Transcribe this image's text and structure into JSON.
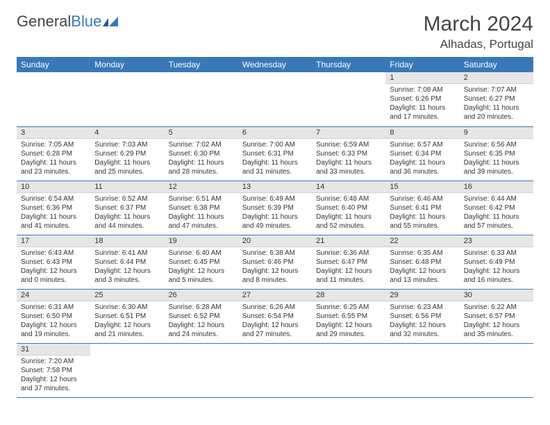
{
  "brand": {
    "part1": "General",
    "part2": "Blue"
  },
  "title": "March 2024",
  "location": "Alhadas, Portugal",
  "weekdays": [
    "Sunday",
    "Monday",
    "Tuesday",
    "Wednesday",
    "Thursday",
    "Friday",
    "Saturday"
  ],
  "colors": {
    "header_bg": "#3978b8",
    "header_text": "#ffffff",
    "daynum_bg": "#e6e6e6",
    "cell_border": "#3978b8",
    "text": "#333333",
    "background": "#ffffff"
  },
  "layout": {
    "first_weekday_index": 5,
    "days_in_month": 31
  },
  "days": {
    "1": {
      "sunrise": "7:08 AM",
      "sunset": "6:26 PM",
      "daylight": "11 hours and 17 minutes."
    },
    "2": {
      "sunrise": "7:07 AM",
      "sunset": "6:27 PM",
      "daylight": "11 hours and 20 minutes."
    },
    "3": {
      "sunrise": "7:05 AM",
      "sunset": "6:28 PM",
      "daylight": "11 hours and 23 minutes."
    },
    "4": {
      "sunrise": "7:03 AM",
      "sunset": "6:29 PM",
      "daylight": "11 hours and 25 minutes."
    },
    "5": {
      "sunrise": "7:02 AM",
      "sunset": "6:30 PM",
      "daylight": "11 hours and 28 minutes."
    },
    "6": {
      "sunrise": "7:00 AM",
      "sunset": "6:31 PM",
      "daylight": "11 hours and 31 minutes."
    },
    "7": {
      "sunrise": "6:59 AM",
      "sunset": "6:33 PM",
      "daylight": "11 hours and 33 minutes."
    },
    "8": {
      "sunrise": "6:57 AM",
      "sunset": "6:34 PM",
      "daylight": "11 hours and 36 minutes."
    },
    "9": {
      "sunrise": "6:56 AM",
      "sunset": "6:35 PM",
      "daylight": "11 hours and 39 minutes."
    },
    "10": {
      "sunrise": "6:54 AM",
      "sunset": "6:36 PM",
      "daylight": "11 hours and 41 minutes."
    },
    "11": {
      "sunrise": "6:52 AM",
      "sunset": "6:37 PM",
      "daylight": "11 hours and 44 minutes."
    },
    "12": {
      "sunrise": "6:51 AM",
      "sunset": "6:38 PM",
      "daylight": "11 hours and 47 minutes."
    },
    "13": {
      "sunrise": "6:49 AM",
      "sunset": "6:39 PM",
      "daylight": "11 hours and 49 minutes."
    },
    "14": {
      "sunrise": "6:48 AM",
      "sunset": "6:40 PM",
      "daylight": "11 hours and 52 minutes."
    },
    "15": {
      "sunrise": "6:46 AM",
      "sunset": "6:41 PM",
      "daylight": "11 hours and 55 minutes."
    },
    "16": {
      "sunrise": "6:44 AM",
      "sunset": "6:42 PM",
      "daylight": "11 hours and 57 minutes."
    },
    "17": {
      "sunrise": "6:43 AM",
      "sunset": "6:43 PM",
      "daylight": "12 hours and 0 minutes."
    },
    "18": {
      "sunrise": "6:41 AM",
      "sunset": "6:44 PM",
      "daylight": "12 hours and 3 minutes."
    },
    "19": {
      "sunrise": "6:40 AM",
      "sunset": "6:45 PM",
      "daylight": "12 hours and 5 minutes."
    },
    "20": {
      "sunrise": "6:38 AM",
      "sunset": "6:46 PM",
      "daylight": "12 hours and 8 minutes."
    },
    "21": {
      "sunrise": "6:36 AM",
      "sunset": "6:47 PM",
      "daylight": "12 hours and 11 minutes."
    },
    "22": {
      "sunrise": "6:35 AM",
      "sunset": "6:48 PM",
      "daylight": "12 hours and 13 minutes."
    },
    "23": {
      "sunrise": "6:33 AM",
      "sunset": "6:49 PM",
      "daylight": "12 hours and 16 minutes."
    },
    "24": {
      "sunrise": "6:31 AM",
      "sunset": "6:50 PM",
      "daylight": "12 hours and 19 minutes."
    },
    "25": {
      "sunrise": "6:30 AM",
      "sunset": "6:51 PM",
      "daylight": "12 hours and 21 minutes."
    },
    "26": {
      "sunrise": "6:28 AM",
      "sunset": "6:52 PM",
      "daylight": "12 hours and 24 minutes."
    },
    "27": {
      "sunrise": "6:26 AM",
      "sunset": "6:54 PM",
      "daylight": "12 hours and 27 minutes."
    },
    "28": {
      "sunrise": "6:25 AM",
      "sunset": "6:55 PM",
      "daylight": "12 hours and 29 minutes."
    },
    "29": {
      "sunrise": "6:23 AM",
      "sunset": "6:56 PM",
      "daylight": "12 hours and 32 minutes."
    },
    "30": {
      "sunrise": "6:22 AM",
      "sunset": "6:57 PM",
      "daylight": "12 hours and 35 minutes."
    },
    "31": {
      "sunrise": "7:20 AM",
      "sunset": "7:58 PM",
      "daylight": "12 hours and 37 minutes."
    }
  }
}
